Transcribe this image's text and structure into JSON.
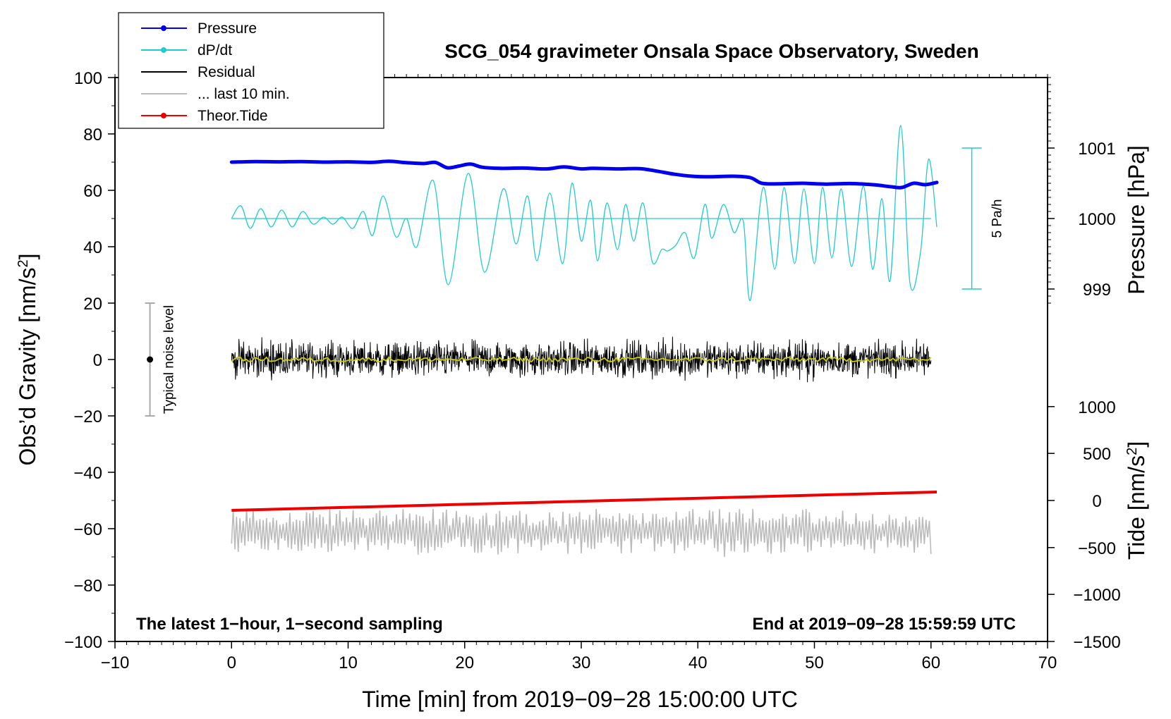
{
  "chart_data": {
    "type": "line",
    "title": "SCG_054 gravimeter Onsala Space Observatory, Sweden",
    "xlabel": "Time [min] from 2019−09−28 15:00:00 UTC",
    "ylabel_left": "Obs’d Gravity [nm/s",
    "ylabel_left_sup": "2",
    "ylabel_left_end": "]",
    "ylabel_pressure": "Pressure [hPa]",
    "ylabel_tide": "Tide [nm/s",
    "ylabel_tide_sup": "2",
    "ylabel_tide_end": "]",
    "xlim": [
      -10,
      70
    ],
    "ylim": [
      -100,
      100
    ],
    "x_ticks": [
      -10,
      0,
      10,
      20,
      30,
      40,
      50,
      60,
      70
    ],
    "x_tick_labels": [
      "−10",
      "0",
      "10",
      "20",
      "30",
      "40",
      "50",
      "60",
      "70"
    ],
    "y_ticks": [
      100,
      80,
      60,
      40,
      20,
      0,
      -20,
      -40,
      -60,
      -80,
      -100
    ],
    "y_tick_labels": [
      "100",
      "80",
      "60",
      "40",
      "20",
      "0",
      "−20",
      "−40",
      "−60",
      "−80",
      "−100"
    ],
    "pressure_axis": {
      "ticks": [
        1001,
        1000,
        999
      ],
      "tick_labels": [
        "1001",
        "1000",
        "999"
      ],
      "gravity_equiv": [
        75,
        50,
        25
      ]
    },
    "tide_axis": {
      "ticks": [
        1000,
        500,
        0,
        -500,
        -1000,
        -1500
      ],
      "tick_labels": [
        "1000",
        "500",
        "0",
        "−500",
        "−1000",
        "−1500"
      ],
      "gravity_equiv": [
        -16.7,
        -33.3,
        -50,
        -66.7,
        -83.3,
        -100
      ]
    },
    "legend": {
      "placement": "top-left",
      "entries": [
        {
          "label": "Pressure",
          "color": "#0000ee",
          "marker": true
        },
        {
          "label": "dP/dt",
          "color": "#22cccc",
          "marker": true
        },
        {
          "label": "Residual",
          "color": "#000000",
          "marker": false
        },
        {
          "label": "... last 10 min.",
          "color": "#bbbbbb",
          "marker": false
        },
        {
          "label": "Theor.Tide",
          "color": "#ee0000",
          "marker": true
        }
      ]
    },
    "annotations": {
      "bottom_left": "The latest 1−hour, 1−second sampling",
      "bottom_right": "End at 2019−09−28 15:59:59 UTC",
      "rate_scale_label": "5 Pa/h",
      "rate_scale_range": [
        25,
        75
      ],
      "rate_scale_x": 63.5,
      "noise_label": "Typical noise level",
      "noise_range": [
        -20,
        20
      ],
      "noise_x": -7
    },
    "series": [
      {
        "name": "Pressure",
        "color": "#0000ee",
        "x": [
          0,
          2,
          4,
          6,
          8,
          10,
          12,
          13.5,
          15,
          16.5,
          17.5,
          18.5,
          19.5,
          20.5,
          21.5,
          23,
          25,
          27,
          28.5,
          30,
          31,
          33,
          35,
          36.5,
          38,
          39.5,
          41,
          43,
          44.5,
          45.5,
          47,
          49,
          51,
          53,
          55,
          56.5,
          57.5,
          58.5,
          59.5,
          60.5
        ],
        "values": [
          70.0,
          70.2,
          70.1,
          70.2,
          70.0,
          70.1,
          69.9,
          70.3,
          69.8,
          69.5,
          69.9,
          68.0,
          68.6,
          69.3,
          68.2,
          67.8,
          67.9,
          67.6,
          68.3,
          67.6,
          67.8,
          67.6,
          67.7,
          66.8,
          65.7,
          65.0,
          64.8,
          65.0,
          64.5,
          62.5,
          62.3,
          62.5,
          62.2,
          62.4,
          62.0,
          61.3,
          61.0,
          62.5,
          62.0,
          62.8
        ]
      },
      {
        "name": "dP/dt",
        "color": "#22cccc",
        "baseline": 50,
        "x": [
          0,
          0.8,
          1.6,
          2.5,
          3.4,
          4.3,
          5.2,
          6.1,
          7.0,
          7.9,
          8.7,
          9.5,
          10.4,
          11.3,
          12.1,
          13.0,
          14.1,
          15.0,
          15.9,
          17.3,
          18.6,
          20.3,
          21.7,
          23.3,
          24.4,
          25.4,
          26.2,
          27.3,
          28.4,
          29.2,
          30.0,
          30.8,
          31.4,
          32.2,
          33.1,
          33.8,
          34.5,
          35.3,
          36.1,
          36.9,
          37.4,
          38.1,
          38.9,
          39.7,
          40.6,
          41.2,
          42.2,
          43.1,
          43.9,
          44.5,
          45.6,
          46.6,
          47.4,
          48.3,
          49.1,
          50.0,
          50.7,
          51.5,
          52.3,
          53.2,
          54.2,
          55.0,
          55.8,
          56.5,
          57.4,
          58.2,
          59.1,
          59.8,
          60.5
        ],
        "values": [
          50,
          54.5,
          46.5,
          53.5,
          47,
          53,
          47,
          52.5,
          48,
          50.5,
          48,
          50.5,
          46.5,
          52.5,
          44,
          58,
          43.5,
          50,
          40,
          63.5,
          26.5,
          66,
          31,
          60.5,
          41,
          58,
          35,
          59,
          34,
          62.5,
          42,
          56.5,
          35,
          55.5,
          39,
          55,
          42,
          55.5,
          34.5,
          39,
          38.5,
          40.5,
          45,
          36,
          55,
          43,
          55,
          45,
          49,
          21,
          61,
          32,
          61,
          34,
          60.5,
          34,
          61,
          36,
          60.5,
          33,
          61.5,
          32,
          57,
          28,
          83,
          27,
          38,
          71,
          47
        ]
      },
      {
        "name": "Residual",
        "color": "#000000",
        "x_range": [
          0,
          60
        ],
        "center": 0,
        "amplitude_range": [
          -11,
          11
        ]
      },
      {
        "name": "... last 10 min.",
        "color": "#bbbbbb",
        "x_range": [
          0,
          60
        ],
        "center": -61,
        "amplitude_range": [
          -70,
          -53
        ]
      },
      {
        "name": "Theor.Tide",
        "color": "#ee0000",
        "x": [
          0,
          60.5
        ],
        "values": [
          -53.5,
          -47
        ]
      },
      {
        "name": "Residual mean",
        "color": "#cccc00",
        "x_range": [
          0,
          60
        ],
        "center": 0
      }
    ]
  }
}
